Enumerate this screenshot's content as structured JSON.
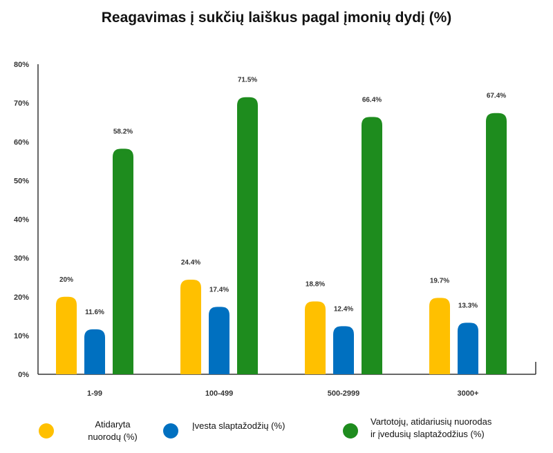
{
  "chart_data": {
    "type": "bar",
    "title": "Reagavimas į sukčių laiškus pagal įmonių dydį (%)",
    "xlabel": "",
    "ylabel": "",
    "ylim": [
      0,
      80
    ],
    "yticks": [
      "0%",
      "10%",
      "20%",
      "30%",
      "40%",
      "50%",
      "60%",
      "70%",
      "80%"
    ],
    "categories": [
      "1-99",
      "100-499",
      "500-2999",
      "3000+"
    ],
    "series": [
      {
        "name": "Atidaryta nuorodų (%)",
        "color": "#FFC000",
        "values": [
          20,
          24.4,
          18.8,
          19.7
        ],
        "labels": [
          "20%",
          "24.4%",
          "18.8%",
          "19.7%"
        ]
      },
      {
        "name": "Įvesta slaptažodžių (%)",
        "color": "#0070C0",
        "values": [
          11.6,
          17.4,
          12.4,
          13.3
        ],
        "labels": [
          "11.6%",
          "17.4%",
          "12.4%",
          "13.3%"
        ]
      },
      {
        "name": "Vartotojų, atidariusių nuorodas ir įvedusių slaptažodžius (%)",
        "color": "#1E8C1E",
        "values": [
          58.2,
          71.5,
          66.4,
          67.4
        ],
        "labels": [
          "58.2%",
          "71.5%",
          "66.4%",
          "67.4%"
        ]
      }
    ],
    "grid": false,
    "legend_position": "bottom"
  },
  "legend": {
    "item1": {
      "line1": "Atidaryta",
      "line2": "nuorodų (%)"
    },
    "item2": {
      "line1": "Įvesta slaptažodžių (%)"
    },
    "item3": {
      "line1": "Vartotojų, atidariusių nuorodas",
      "line2": "ir įvedusių slaptažodžius (%)"
    }
  }
}
